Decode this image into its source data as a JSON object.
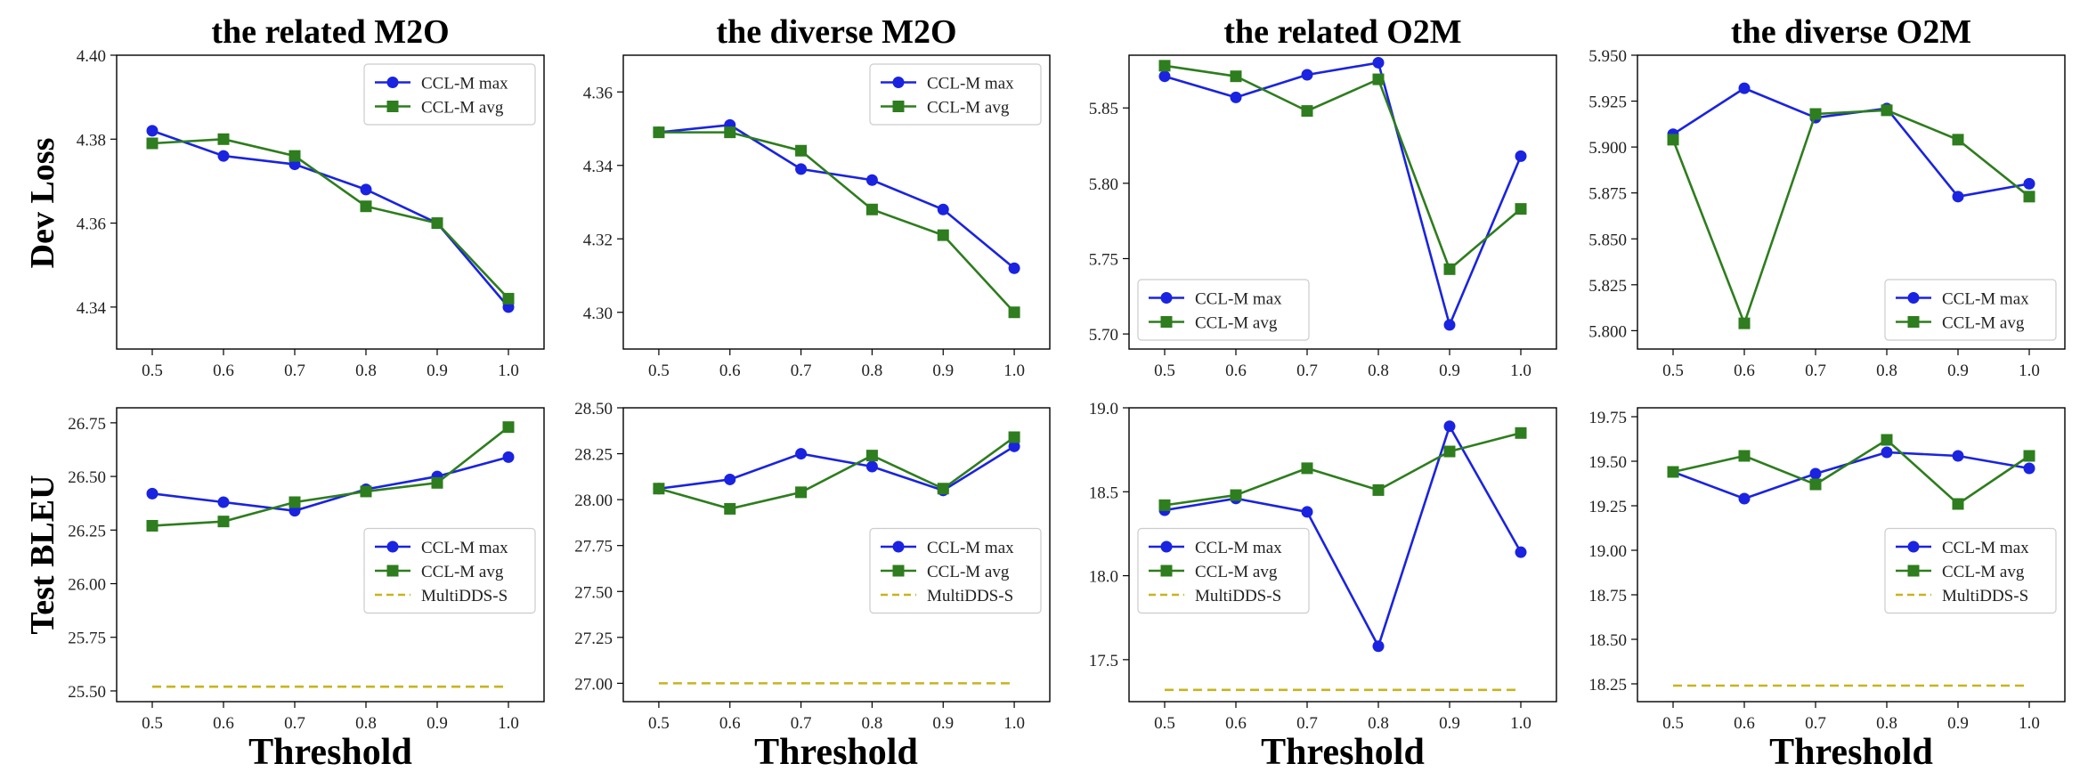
{
  "figure": {
    "row_labels": [
      "Dev Loss",
      "Test BLEU"
    ],
    "xlabel": "Threshold"
  },
  "legend_labels": {
    "max": "CCL-M max",
    "avg": "CCL-M avg",
    "baseline": "MultiDDS-S"
  },
  "colors": {
    "max": "#1a23e0",
    "avg": "#2e7d1e",
    "baseline": "#c8b41e"
  },
  "chart_data": [
    {
      "type": "line",
      "title": "the related M2O",
      "ylabel": "Dev Loss",
      "x": [
        0.5,
        0.6,
        0.7,
        0.8,
        0.9,
        1.0
      ],
      "xticks": [
        "0.5",
        "0.6",
        "0.7",
        "0.8",
        "0.9",
        "1.0"
      ],
      "ylim": [
        4.33,
        4.4
      ],
      "yticks": [
        4.34,
        4.36,
        4.38,
        4.4
      ],
      "ytick_labels": [
        "4.34",
        "4.36",
        "4.38",
        "4.40"
      ],
      "legend_position": "top-right",
      "series": [
        {
          "name": "CCL-M max",
          "values": [
            4.382,
            4.376,
            4.374,
            4.368,
            4.36,
            4.34
          ]
        },
        {
          "name": "CCL-M avg",
          "values": [
            4.379,
            4.38,
            4.376,
            4.364,
            4.36,
            4.342
          ]
        }
      ]
    },
    {
      "type": "line",
      "title": "the diverse M2O",
      "ylabel": "Dev Loss",
      "x": [
        0.5,
        0.6,
        0.7,
        0.8,
        0.9,
        1.0
      ],
      "xticks": [
        "0.5",
        "0.6",
        "0.7",
        "0.8",
        "0.9",
        "1.0"
      ],
      "ylim": [
        4.29,
        4.37
      ],
      "yticks": [
        4.3,
        4.32,
        4.34,
        4.36
      ],
      "ytick_labels": [
        "4.30",
        "4.32",
        "4.34",
        "4.36"
      ],
      "legend_position": "top-right",
      "series": [
        {
          "name": "CCL-M max",
          "values": [
            4.349,
            4.351,
            4.339,
            4.336,
            4.328,
            4.312
          ]
        },
        {
          "name": "CCL-M avg",
          "values": [
            4.349,
            4.349,
            4.344,
            4.328,
            4.321,
            4.3
          ]
        }
      ]
    },
    {
      "type": "line",
      "title": "the related O2M",
      "ylabel": "Dev Loss",
      "x": [
        0.5,
        0.6,
        0.7,
        0.8,
        0.9,
        1.0
      ],
      "xticks": [
        "0.5",
        "0.6",
        "0.7",
        "0.8",
        "0.9",
        "1.0"
      ],
      "ylim": [
        5.69,
        5.885
      ],
      "yticks": [
        5.7,
        5.75,
        5.8,
        5.85
      ],
      "ytick_labels": [
        "5.70",
        "5.75",
        "5.80",
        "5.85"
      ],
      "legend_position": "bottom-left",
      "series": [
        {
          "name": "CCL-M max",
          "values": [
            5.871,
            5.857,
            5.872,
            5.88,
            5.706,
            5.818
          ]
        },
        {
          "name": "CCL-M avg",
          "values": [
            5.878,
            5.871,
            5.848,
            5.869,
            5.743,
            5.783
          ]
        }
      ]
    },
    {
      "type": "line",
      "title": "the diverse O2M",
      "ylabel": "Dev Loss",
      "x": [
        0.5,
        0.6,
        0.7,
        0.8,
        0.9,
        1.0
      ],
      "xticks": [
        "0.5",
        "0.6",
        "0.7",
        "0.8",
        "0.9",
        "1.0"
      ],
      "ylim": [
        5.79,
        5.95
      ],
      "yticks": [
        5.8,
        5.825,
        5.85,
        5.875,
        5.9,
        5.925,
        5.95
      ],
      "ytick_labels": [
        "5.800",
        "5.825",
        "5.850",
        "5.875",
        "5.900",
        "5.925",
        "5.950"
      ],
      "legend_position": "bottom-right",
      "series": [
        {
          "name": "CCL-M max",
          "values": [
            5.907,
            5.932,
            5.916,
            5.921,
            5.873,
            5.88
          ]
        },
        {
          "name": "CCL-M avg",
          "values": [
            5.904,
            5.804,
            5.918,
            5.92,
            5.904,
            5.873
          ]
        }
      ]
    },
    {
      "type": "line",
      "title": "",
      "ylabel": "Test BLEU",
      "x": [
        0.5,
        0.6,
        0.7,
        0.8,
        0.9,
        1.0
      ],
      "xticks": [
        "0.5",
        "0.6",
        "0.7",
        "0.8",
        "0.9",
        "1.0"
      ],
      "ylim": [
        25.45,
        26.82
      ],
      "yticks": [
        25.5,
        25.75,
        26.0,
        26.25,
        26.5,
        26.75
      ],
      "ytick_labels": [
        "25.50",
        "25.75",
        "26.00",
        "26.25",
        "26.50",
        "26.75"
      ],
      "legend_position": "center-right",
      "series": [
        {
          "name": "CCL-M max",
          "values": [
            26.42,
            26.38,
            26.34,
            26.44,
            26.5,
            26.59
          ]
        },
        {
          "name": "CCL-M avg",
          "values": [
            26.27,
            26.29,
            26.38,
            26.43,
            26.47,
            26.73
          ]
        }
      ],
      "baseline": {
        "name": "MultiDDS-S",
        "value": 25.52
      }
    },
    {
      "type": "line",
      "title": "",
      "ylabel": "Test BLEU",
      "x": [
        0.5,
        0.6,
        0.7,
        0.8,
        0.9,
        1.0
      ],
      "xticks": [
        "0.5",
        "0.6",
        "0.7",
        "0.8",
        "0.9",
        "1.0"
      ],
      "ylim": [
        26.9,
        28.5
      ],
      "yticks": [
        27.0,
        27.25,
        27.5,
        27.75,
        28.0,
        28.25,
        28.5
      ],
      "ytick_labels": [
        "27.00",
        "27.25",
        "27.50",
        "27.75",
        "28.00",
        "28.25",
        "28.50"
      ],
      "legend_position": "center-right",
      "series": [
        {
          "name": "CCL-M max",
          "values": [
            28.06,
            28.11,
            28.25,
            28.18,
            28.05,
            28.29
          ]
        },
        {
          "name": "CCL-M avg",
          "values": [
            28.06,
            27.95,
            28.04,
            28.24,
            28.06,
            28.34
          ]
        }
      ],
      "baseline": {
        "name": "MultiDDS-S",
        "value": 27.0
      }
    },
    {
      "type": "line",
      "title": "",
      "ylabel": "Test BLEU",
      "x": [
        0.5,
        0.6,
        0.7,
        0.8,
        0.9,
        1.0
      ],
      "xticks": [
        "0.5",
        "0.6",
        "0.7",
        "0.8",
        "0.9",
        "1.0"
      ],
      "ylim": [
        17.25,
        19.0
      ],
      "yticks": [
        17.5,
        18.0,
        18.5,
        19.0
      ],
      "ytick_labels": [
        "17.5",
        "18.0",
        "18.5",
        "19.0"
      ],
      "legend_position": "center-left",
      "series": [
        {
          "name": "CCL-M max",
          "values": [
            18.39,
            18.46,
            18.38,
            17.58,
            18.89,
            18.14
          ]
        },
        {
          "name": "CCL-M avg",
          "values": [
            18.42,
            18.48,
            18.64,
            18.51,
            18.74,
            18.85
          ]
        }
      ],
      "baseline": {
        "name": "MultiDDS-S",
        "value": 17.32
      }
    },
    {
      "type": "line",
      "title": "",
      "ylabel": "Test BLEU",
      "x": [
        0.5,
        0.6,
        0.7,
        0.8,
        0.9,
        1.0
      ],
      "xticks": [
        "0.5",
        "0.6",
        "0.7",
        "0.8",
        "0.9",
        "1.0"
      ],
      "ylim": [
        18.15,
        19.8
      ],
      "yticks": [
        18.25,
        18.5,
        18.75,
        19.0,
        19.25,
        19.5,
        19.75
      ],
      "ytick_labels": [
        "18.25",
        "18.50",
        "18.75",
        "19.00",
        "19.25",
        "19.50",
        "19.75"
      ],
      "legend_position": "center-right",
      "series": [
        {
          "name": "CCL-M max",
          "values": [
            19.44,
            19.29,
            19.43,
            19.55,
            19.53,
            19.46
          ]
        },
        {
          "name": "CCL-M avg",
          "values": [
            19.44,
            19.53,
            19.37,
            19.62,
            19.26,
            19.53
          ]
        }
      ],
      "baseline": {
        "name": "MultiDDS-S",
        "value": 18.24
      }
    }
  ]
}
